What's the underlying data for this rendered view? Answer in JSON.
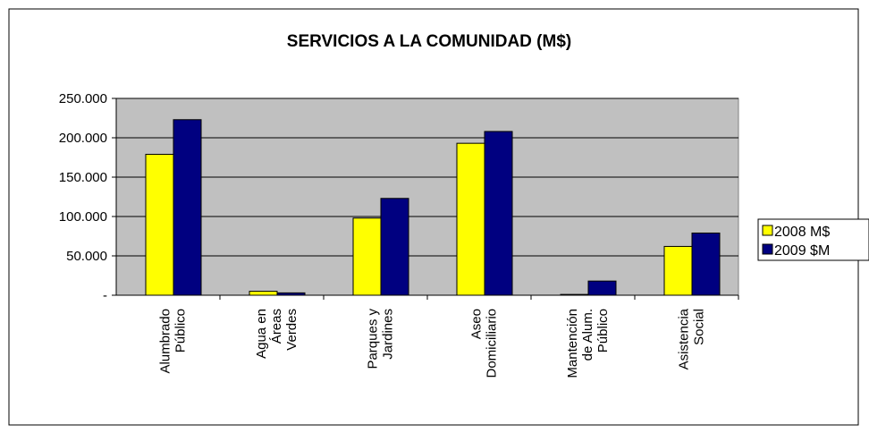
{
  "chart_data": {
    "type": "bar",
    "title": "SERVICIOS A LA COMUNIDAD (M$)",
    "categories": [
      "Alumbrado\nPúblico",
      "Agua en\nÁreas\nVerdes",
      "Parques y\nJardines",
      "Aseo\nDomiciliario",
      "Mantención\nde Alum.\nPúblico",
      "Asistencia\nSocial"
    ],
    "series": [
      {
        "name": "2008 M$",
        "color": "#ffff00",
        "values": [
          179000,
          5000,
          98000,
          193000,
          1000,
          62000
        ]
      },
      {
        "name": "2009 $M",
        "color": "#000080",
        "values": [
          223000,
          3000,
          123000,
          208000,
          18000,
          79000
        ]
      }
    ],
    "ylim": [
      0,
      250000
    ],
    "yticks": [
      {
        "value": 0,
        "label": "-"
      },
      {
        "value": 50000,
        "label": "50.000"
      },
      {
        "value": 100000,
        "label": "100.000"
      },
      {
        "value": 150000,
        "label": "150.000"
      },
      {
        "value": 200000,
        "label": "200.000"
      },
      {
        "value": 250000,
        "label": "250.000"
      }
    ],
    "grid": true,
    "plot_background": "#c0c0c0",
    "legend": "right"
  }
}
